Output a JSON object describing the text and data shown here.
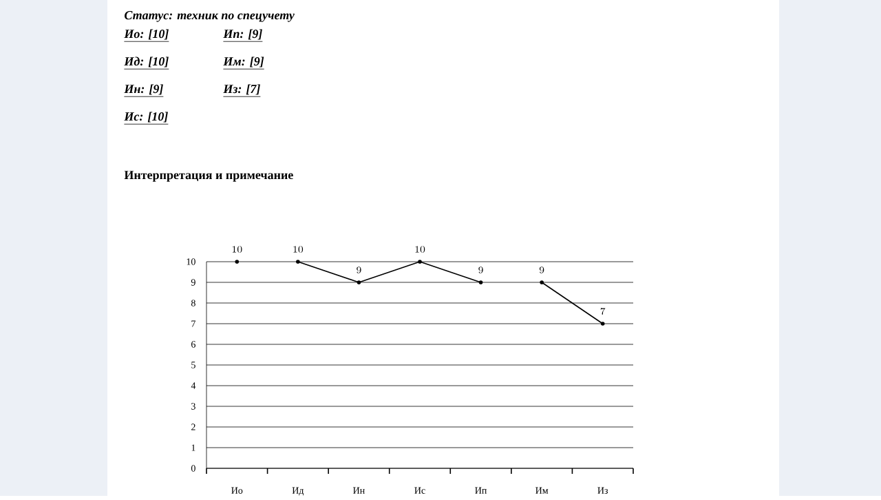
{
  "chart_data": {
    "type": "line",
    "title": "Интерпретация и примечание",
    "annotations": [
      "Статус:  техник по спецучету",
      "Ио:  [10]",
      "Ид:  [10]",
      "Ин:  [9]",
      "Ис:  [10]",
      "Ип:  [9]",
      "Им:  [9]",
      "Из:  [7]"
    ],
    "categories": [
      "Ио",
      "Ид",
      "Ин",
      "Ис",
      "Ип",
      "Им",
      "Из"
    ],
    "series": [
      {
        "color": "#000000",
        "values": [
          10,
          null,
          null,
          null,
          null,
          null,
          null
        ]
      },
      {
        "color": "#000000",
        "values": [
          null,
          10,
          9,
          10,
          9,
          null,
          null
        ]
      },
      {
        "color": "#000000",
        "values": [
          null,
          null,
          null,
          null,
          null,
          9,
          7
        ]
      }
    ],
    "ylim": [
      0,
      10
    ],
    "yticks": [
      0,
      1,
      2,
      3,
      4,
      5,
      6,
      7,
      8,
      9,
      10
    ],
    "grid": "y",
    "marker": "circle",
    "line_style": "solid",
    "data_labels": true
  }
}
